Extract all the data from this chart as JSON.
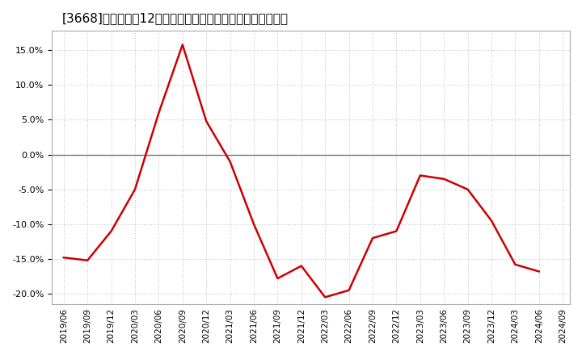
{
  "title": "[3668]　売上高の12か月移動合計の対前年同期増減率の推移",
  "background_color": "#ffffff",
  "plot_bg_color": "#ffffff",
  "line_color": "#cc0000",
  "line_width": 1.8,
  "zero_line_color": "#777777",
  "grid_color": "#bbbbbb",
  "dates": [
    "2019/06",
    "2019/09",
    "2019/12",
    "2020/03",
    "2020/06",
    "2020/09",
    "2020/12",
    "2021/03",
    "2021/06",
    "2021/09",
    "2021/12",
    "2022/03",
    "2022/06",
    "2022/09",
    "2022/12",
    "2023/03",
    "2023/06",
    "2023/09",
    "2023/12",
    "2024/03",
    "2024/06"
  ],
  "values": [
    -0.148,
    -0.152,
    -0.11,
    -0.05,
    0.06,
    0.158,
    0.048,
    -0.01,
    -0.1,
    -0.178,
    -0.16,
    -0.205,
    -0.195,
    -0.12,
    -0.11,
    -0.03,
    -0.035,
    -0.05,
    -0.095,
    -0.158,
    -0.168
  ],
  "yticks": [
    -0.2,
    -0.15,
    -0.1,
    -0.05,
    0.0,
    0.05,
    0.1,
    0.15
  ],
  "ylim": [
    -0.215,
    0.178
  ],
  "xlabel_dates": [
    "2019/06",
    "2019/09",
    "2019/12",
    "2020/03",
    "2020/06",
    "2020/09",
    "2020/12",
    "2021/03",
    "2021/06",
    "2021/09",
    "2021/12",
    "2022/03",
    "2022/06",
    "2022/09",
    "2022/12",
    "2023/03",
    "2023/06",
    "2023/09",
    "2023/12",
    "2024/03",
    "2024/06",
    "2024/09"
  ],
  "title_fontsize": 11,
  "tick_fontsize": 8,
  "xtick_fontsize": 7.5
}
